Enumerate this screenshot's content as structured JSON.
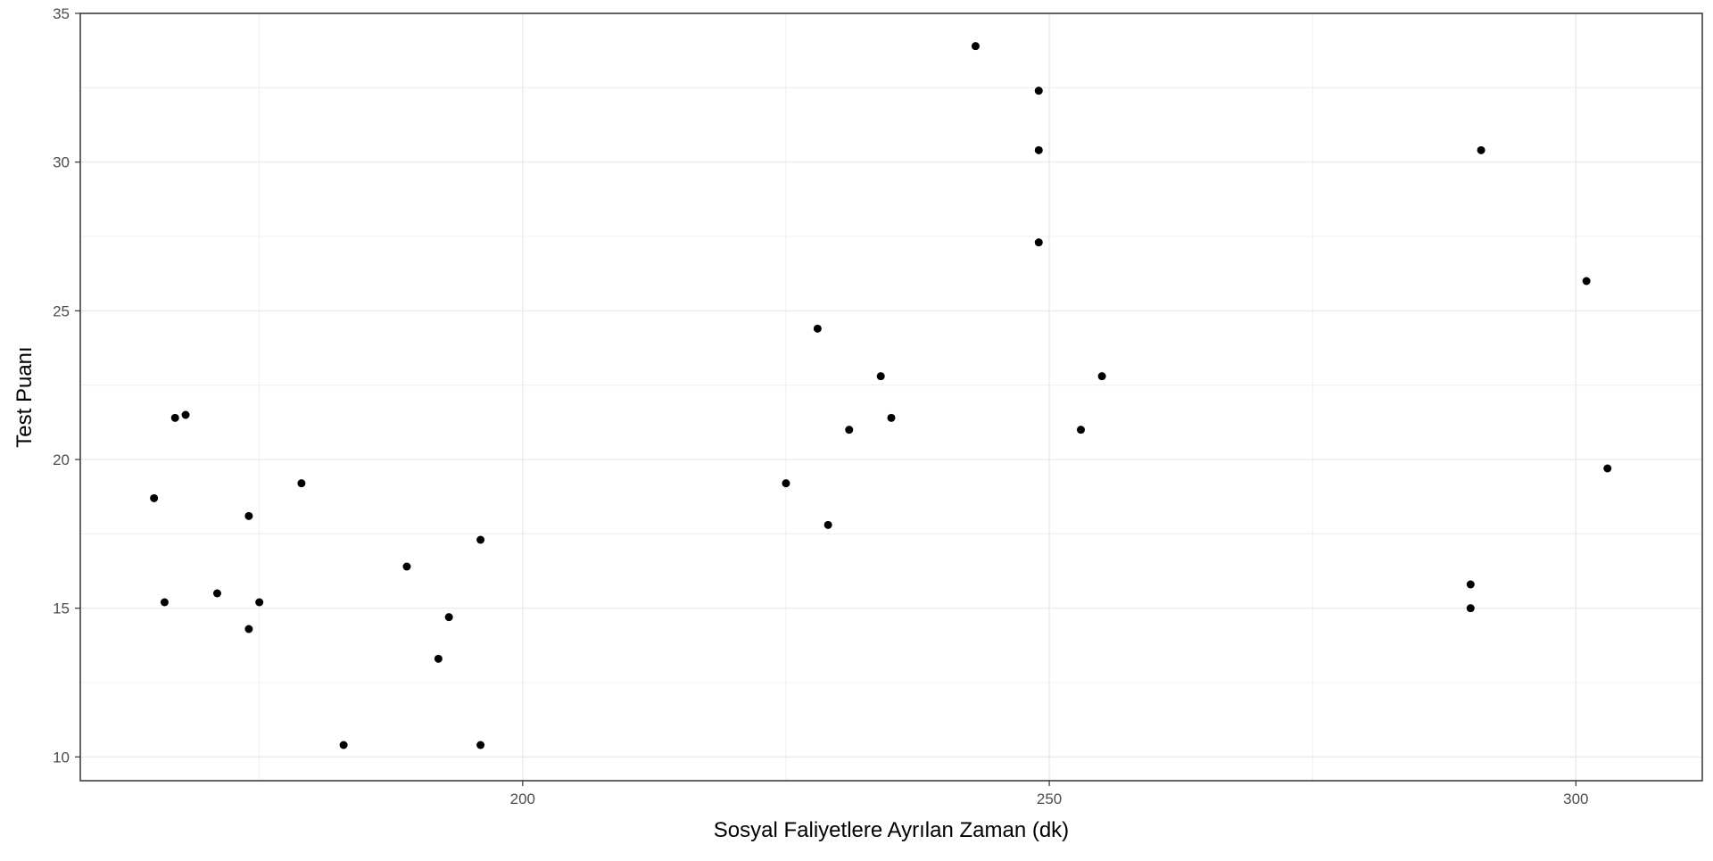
{
  "chart_data": {
    "type": "scatter",
    "title": "",
    "xlabel": "Sosyal Faliyetlere Ayrılan Zaman (dk)",
    "ylabel": "Test Puanı",
    "xlim": [
      158,
      312
    ],
    "ylim": [
      9.2,
      35
    ],
    "x_ticks": [
      200,
      250,
      300
    ],
    "x_tick_labels": [
      "200",
      "250",
      "300"
    ],
    "x_minor_ticks": [
      175,
      225,
      275
    ],
    "y_ticks": [
      10,
      15,
      20,
      25,
      30,
      35
    ],
    "y_tick_labels": [
      "10",
      "15",
      "20",
      "25",
      "30",
      "35"
    ],
    "y_minor_ticks": [
      12.5,
      17.5,
      22.5,
      27.5,
      32.5
    ],
    "grid": true,
    "legend": "none",
    "colors": {
      "point": "#000000",
      "grid": "#ebebeb",
      "panel_border": "#333333",
      "background": "#ffffff"
    },
    "points": [
      {
        "x": 165,
        "y": 18.7
      },
      {
        "x": 166,
        "y": 15.2
      },
      {
        "x": 167,
        "y": 21.4
      },
      {
        "x": 168,
        "y": 21.5
      },
      {
        "x": 171,
        "y": 15.5
      },
      {
        "x": 174,
        "y": 18.1
      },
      {
        "x": 174,
        "y": 14.3
      },
      {
        "x": 175,
        "y": 15.2
      },
      {
        "x": 179,
        "y": 19.2
      },
      {
        "x": 183,
        "y": 10.4
      },
      {
        "x": 189,
        "y": 16.4
      },
      {
        "x": 192,
        "y": 13.3
      },
      {
        "x": 193,
        "y": 14.7
      },
      {
        "x": 196,
        "y": 17.3
      },
      {
        "x": 196,
        "y": 10.4
      },
      {
        "x": 225,
        "y": 19.2
      },
      {
        "x": 228,
        "y": 24.4
      },
      {
        "x": 229,
        "y": 17.8
      },
      {
        "x": 231,
        "y": 21.0
      },
      {
        "x": 234,
        "y": 22.8
      },
      {
        "x": 235,
        "y": 21.4
      },
      {
        "x": 243,
        "y": 33.9
      },
      {
        "x": 249,
        "y": 32.4
      },
      {
        "x": 249,
        "y": 30.4
      },
      {
        "x": 249,
        "y": 27.3
      },
      {
        "x": 253,
        "y": 21.0
      },
      {
        "x": 255,
        "y": 22.8
      },
      {
        "x": 290,
        "y": 15.8
      },
      {
        "x": 290,
        "y": 15.0
      },
      {
        "x": 291,
        "y": 30.4
      },
      {
        "x": 301,
        "y": 26.0
      },
      {
        "x": 303,
        "y": 19.7
      }
    ]
  }
}
